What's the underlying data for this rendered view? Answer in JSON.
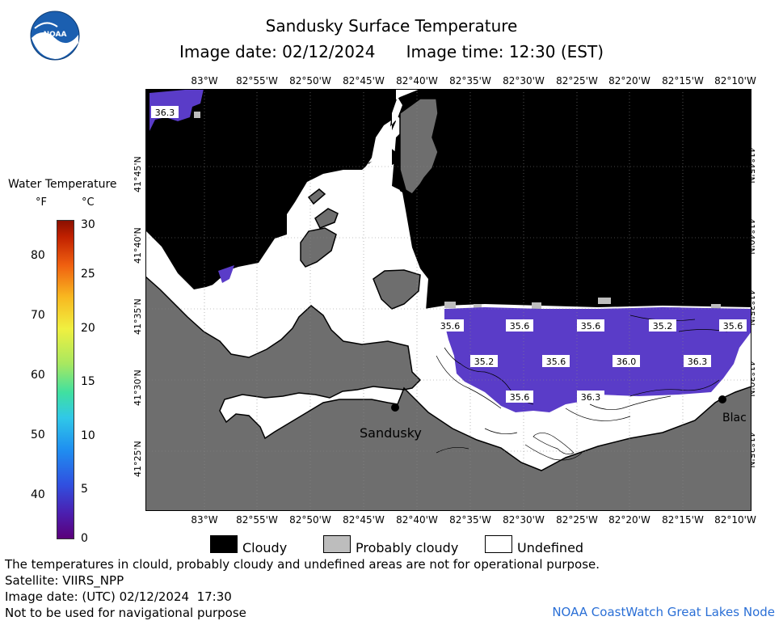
{
  "header": {
    "title": "Sandusky Surface Temperature",
    "subtitle": "Image date: 02/12/2024      Image time: 12:30 (EST)"
  },
  "logo": {
    "text": "NOAA"
  },
  "scale": {
    "title": "Water Temperature",
    "unit_f": "°F",
    "unit_c": "°C",
    "f_ticks": [
      "80",
      "70",
      "60",
      "50",
      "40"
    ],
    "c_ticks": [
      "30",
      "25",
      "20",
      "15",
      "10",
      "5",
      "0"
    ]
  },
  "map": {
    "lon_labels": [
      "83°W",
      "82°55'W",
      "82°50'W",
      "82°45'W",
      "82°40'W",
      "82°35'W",
      "82°30'W",
      "82°25'W",
      "82°20'W",
      "82°15'W",
      "82°10'W"
    ],
    "lat_labels": [
      "41°45'N",
      "41°40'N",
      "41°35'N",
      "41°30'N",
      "41°25'N"
    ],
    "cities": [
      {
        "name": "Sandusky"
      },
      {
        "name": "Blac"
      }
    ],
    "temperatures": [
      {
        "value": "36.3"
      },
      {
        "value": "35.6"
      },
      {
        "value": "35.6"
      },
      {
        "value": "35.6"
      },
      {
        "value": "35.2"
      },
      {
        "value": "35.6"
      },
      {
        "value": "35.2"
      },
      {
        "value": "35.6"
      },
      {
        "value": "36.0"
      },
      {
        "value": "36.3"
      },
      {
        "value": "35.6"
      },
      {
        "value": "36.3"
      }
    ],
    "colors": {
      "cloud": "#000000",
      "land": "#6e6e6e",
      "undefined": "#ffffff",
      "probably_cloudy": "#bdbdbd",
      "water": "#5a3cc8"
    }
  },
  "legend": {
    "cloudy": "Cloudy",
    "probably_cloudy": "Probably cloudy",
    "undefined": "Undefined"
  },
  "footer": {
    "line1": "The temperatures in clould, probably cloudy and undefined areas are not for operational purpose.",
    "line2": "Satellite: VIIRS_NPP",
    "line3": "Image date: (UTC) 02/12/2024  17:30",
    "line4": "Not to be used for navigational purpose",
    "credit": "NOAA CoastWatch Great Lakes Node"
  }
}
